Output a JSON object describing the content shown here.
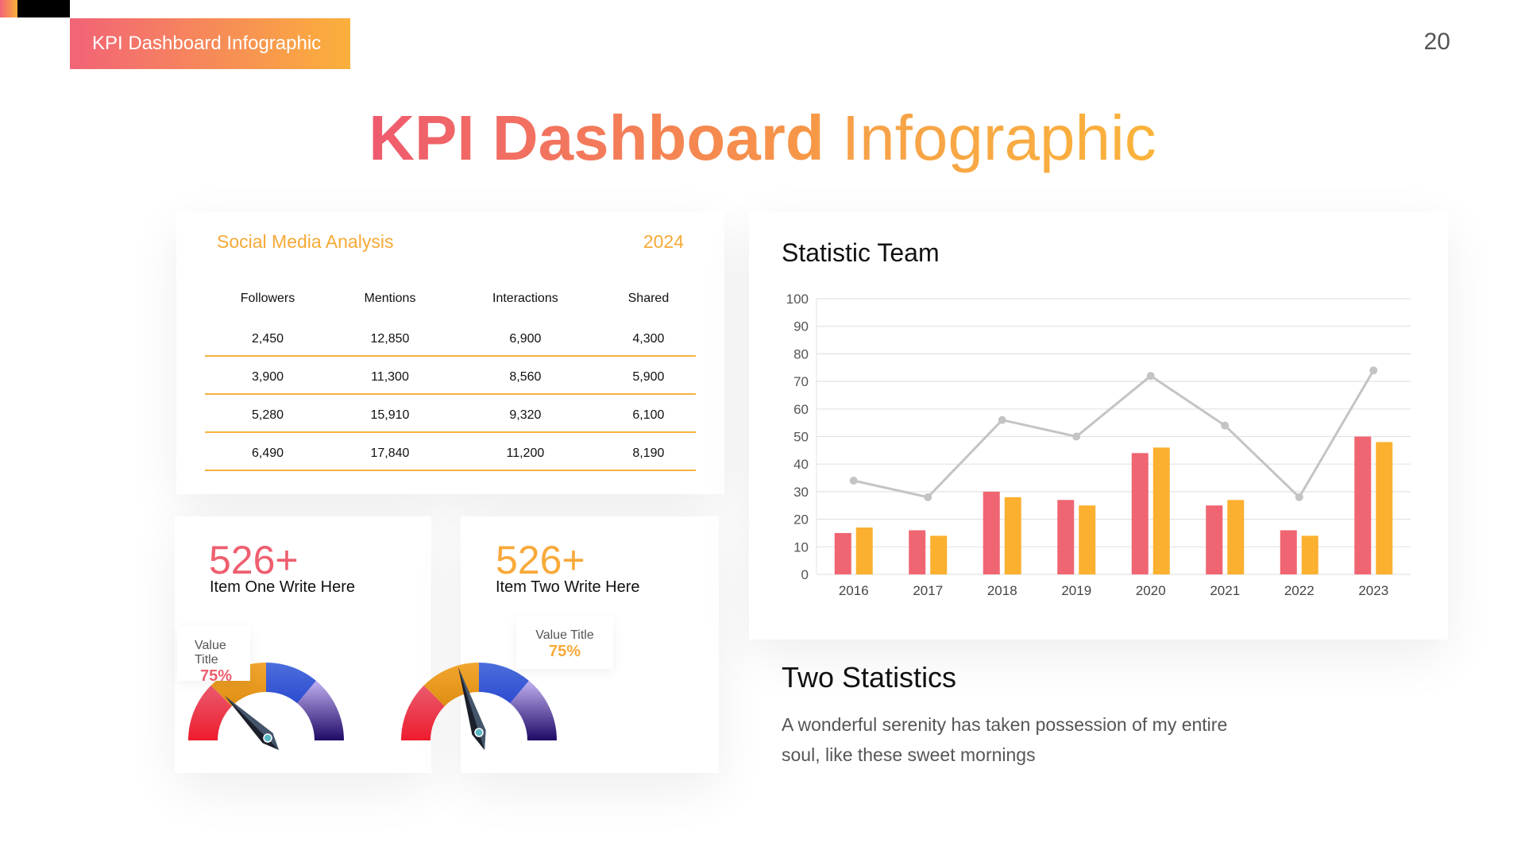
{
  "header": {
    "tag": "KPI Dashboard Infographic",
    "page_number": "20",
    "title_bold": "KPI Dashboard",
    "title_light": "Infographic"
  },
  "social": {
    "title": "Social Media Analysis",
    "year": "2024",
    "columns": [
      "Followers",
      "Mentions",
      "Interactions",
      "Shared"
    ],
    "rows": [
      [
        "2,450",
        "12,850",
        "6,900",
        "4,300"
      ],
      [
        "3,900",
        "11,300",
        "8,560",
        "5,900"
      ],
      [
        "5,280",
        "15,910",
        "9,320",
        "6,100"
      ],
      [
        "6,490",
        "17,840",
        "11,200",
        "8,190"
      ]
    ]
  },
  "kpis": [
    {
      "value": "526+",
      "label": "Item One Write Here",
      "value_title": "Value Title",
      "percent": "75%",
      "color": "#ee5f6f"
    },
    {
      "value": "526+",
      "label": "Item Two Write Here",
      "value_title": "Value Title",
      "percent": "75%",
      "color": "#f8a93a"
    }
  ],
  "chart_data": {
    "type": "bar",
    "title": "Statistic Team",
    "categories": [
      "2016",
      "2017",
      "2018",
      "2019",
      "2020",
      "2021",
      "2022",
      "2023"
    ],
    "series": [
      {
        "type": "bar",
        "color": "#f06572",
        "values": [
          15,
          16,
          30,
          27,
          44,
          25,
          16,
          50
        ]
      },
      {
        "type": "bar",
        "color": "#fbb030",
        "values": [
          17,
          14,
          28,
          25,
          46,
          27,
          14,
          48
        ]
      },
      {
        "type": "line",
        "color": "#c4c4c4",
        "values": [
          34,
          28,
          56,
          50,
          72,
          54,
          28,
          74
        ]
      }
    ],
    "ylim": [
      0,
      100
    ],
    "yticks": [
      0,
      10,
      20,
      30,
      40,
      50,
      60,
      70,
      80,
      90,
      100
    ],
    "grid": true
  },
  "two_stats": {
    "title": "Two Statistics",
    "body_line1": "A wonderful serenity has taken possession of my entire",
    "body_line2": "soul, like these sweet mornings"
  }
}
